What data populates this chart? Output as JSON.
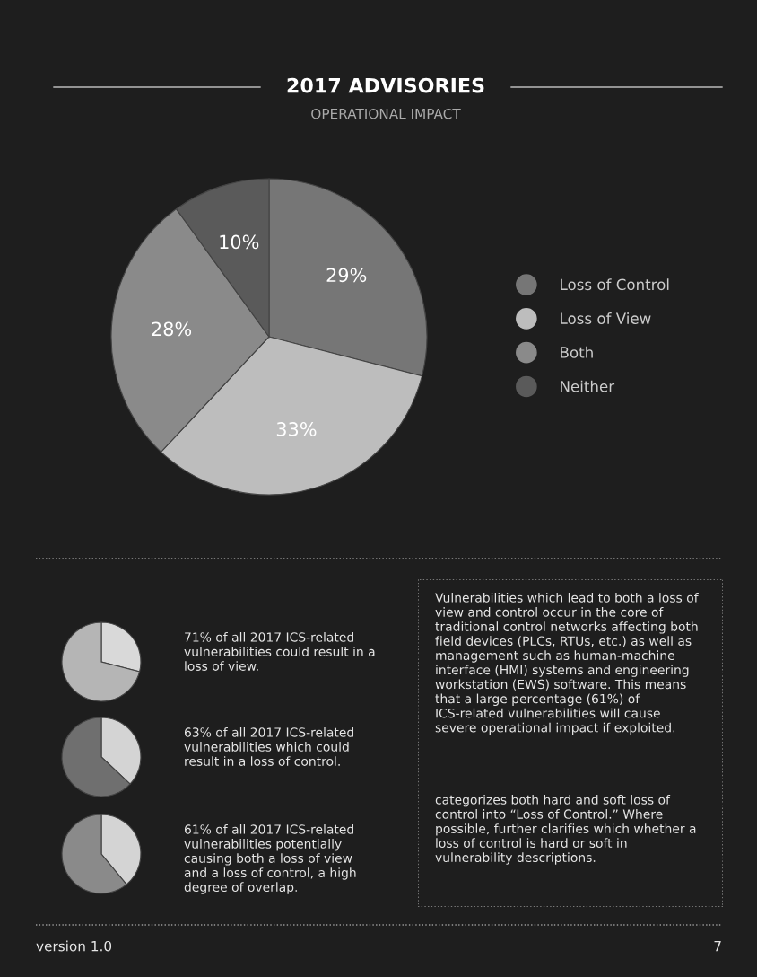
{
  "chart_data": [
    {
      "type": "pie",
      "title": "2017 ADVISORIES",
      "subtitle": "OPERATIONAL IMPACT",
      "categories": [
        "Loss of Control",
        "Loss of View",
        "Both",
        "Neither"
      ],
      "values": [
        29,
        33,
        28,
        10
      ],
      "colors": [
        "#767676",
        "#bdbdbd",
        "#8a8a8a",
        "#5a5a5a"
      ],
      "value_labels": [
        "29%",
        "33%",
        "28%",
        "10%"
      ],
      "legend": "right"
    },
    {
      "type": "pie",
      "categories": [
        null,
        null
      ],
      "values": [
        29,
        71
      ],
      "colors": [
        "#d9d9d9",
        "#b5b5b5"
      ],
      "annotations": [
        "71% of all 2017 ICS-related vulnerabilities could result in a loss of view."
      ]
    },
    {
      "type": "pie",
      "categories": [
        null,
        null
      ],
      "values": [
        37,
        63
      ],
      "colors": [
        "#d4d4d4",
        "#6f6f6f"
      ],
      "annotations": [
        "63% of all 2017 ICS-related vulnerabilities which could result in a loss of control."
      ]
    },
    {
      "type": "pie",
      "categories": [
        null,
        null
      ],
      "values": [
        39,
        61
      ],
      "colors": [
        "#d4d4d4",
        "#8a8a8a"
      ],
      "annotations": [
        "61% of all 2017 ICS-related vulnerabilities potentially causing both a loss of view and a loss of control, a high degree of overlap."
      ]
    },
    {
      "type": "other",
      "annotations": [
        "Vulnerabilities which lead to both a loss of view and control occur in the core of traditional control networks affecting both field devices (PLCs, RTUs, etc.) as well as management such as human-machine interface (HMI) systems and engineering workstation (EWS) software. This means that a large percentage (61%) of ICS-related vulnerabilities will cause severe operational impact if exploited.",
        "categorizes both hard and soft loss of control into “Loss of Control.” Where possible, further clarifies which whether a loss of control is hard or soft in vulnerability descriptions.",
        "version 1.0",
        "7"
      ]
    }
  ]
}
